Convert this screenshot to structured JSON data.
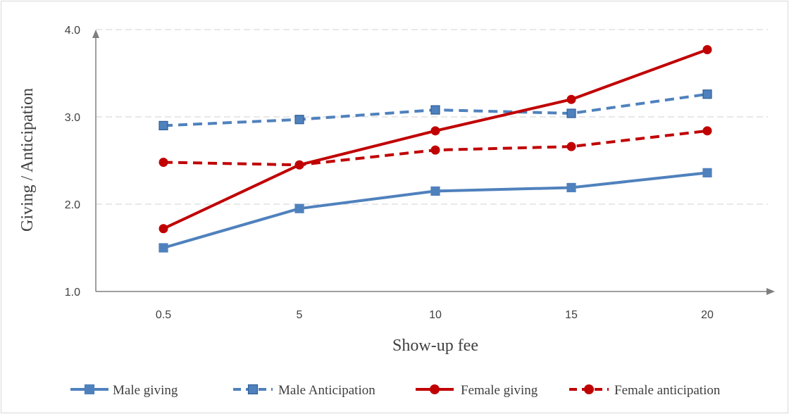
{
  "chart_data": {
    "type": "line",
    "title": "",
    "xlabel": "Show-up fee",
    "ylabel": "Giving / Anticipation",
    "categories": [
      "0.5",
      "5",
      "10",
      "15",
      "20"
    ],
    "ylim": [
      1.0,
      4.0
    ],
    "yticks": [
      "1.0",
      "2.0",
      "3.0",
      "4.0"
    ],
    "grid": "horizontal dashed",
    "legend_position": "bottom",
    "series": [
      {
        "name": "Male giving",
        "values": [
          1.5,
          1.95,
          2.15,
          2.19,
          2.36
        ],
        "color": "#4f81bd",
        "dash": "solid",
        "marker": "square"
      },
      {
        "name": "Male Anticipation",
        "values": [
          2.9,
          2.97,
          3.08,
          3.04,
          3.26
        ],
        "color": "#4f81bd",
        "dash": "dashed",
        "marker": "square"
      },
      {
        "name": "Female giving",
        "values": [
          1.72,
          2.45,
          2.84,
          3.2,
          3.77
        ],
        "color": "#c00000",
        "dash": "solid",
        "marker": "circle"
      },
      {
        "name": "Female anticipation",
        "values": [
          2.48,
          2.45,
          2.62,
          2.66,
          2.84
        ],
        "color": "#c00000",
        "dash": "dashed",
        "marker": "circle"
      }
    ]
  }
}
